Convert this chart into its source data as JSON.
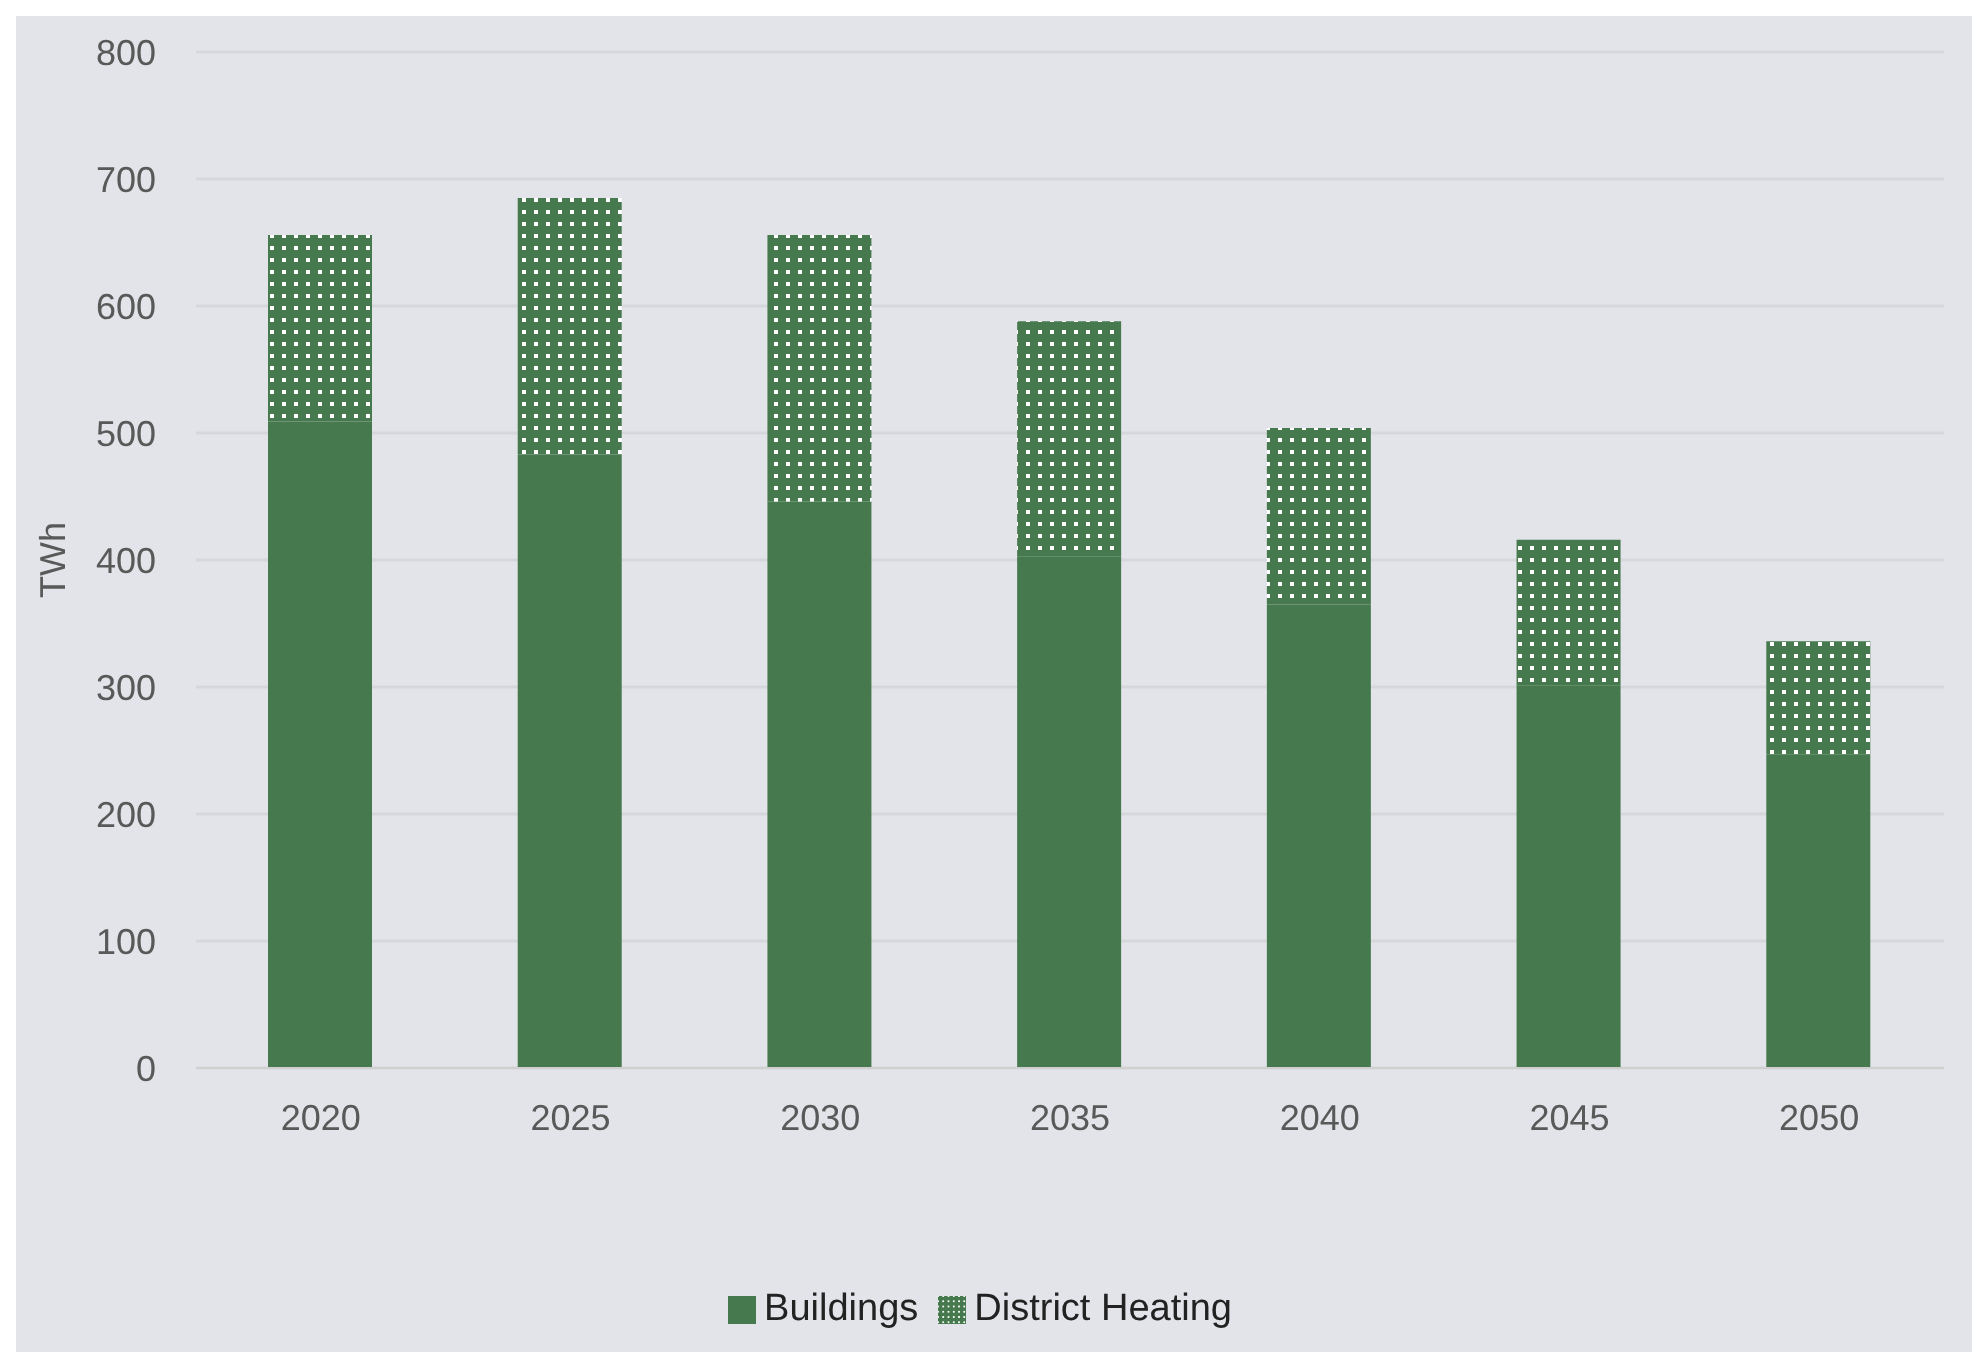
{
  "chart_data": {
    "type": "bar",
    "stacked": true,
    "ylabel": "TWh",
    "categories": [
      "2020",
      "2025",
      "2030",
      "2035",
      "2040",
      "2045",
      "2050"
    ],
    "series": [
      {
        "name": "Buildings",
        "color": "#467a4e",
        "values": [
          509,
          483,
          446,
          403,
          365,
          301,
          247
        ]
      },
      {
        "name": "District Heating",
        "color": "#467a4e",
        "values": [
          147,
          202,
          210,
          185,
          139,
          115,
          89
        ]
      }
    ],
    "ylim": [
      0,
      800
    ],
    "yticks": [
      0,
      100,
      200,
      300,
      400,
      500,
      600,
      700,
      800
    ],
    "grid": "y",
    "legend": "bottom"
  }
}
